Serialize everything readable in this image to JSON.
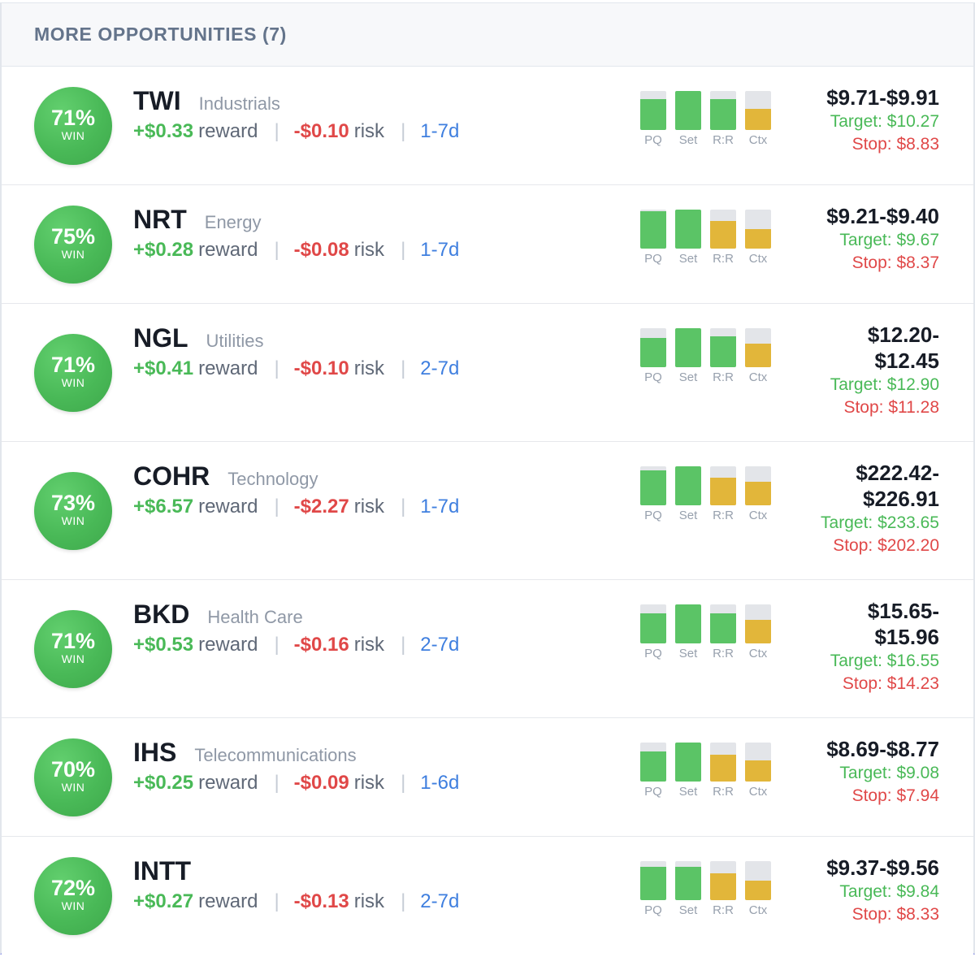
{
  "header": {
    "title": "MORE OPPORTUNITIES (7)"
  },
  "labels": {
    "win": "WIN",
    "reward": "reward",
    "risk": "risk",
    "separator": "|"
  },
  "bar_labels": [
    "PQ",
    "Set",
    "R:R",
    "Ctx"
  ],
  "colors": {
    "green": "#5bc466",
    "amber": "#e2b63a",
    "track": "#e3e5e9"
  },
  "opportunities": [
    {
      "pct": "71%",
      "ticker": "TWI",
      "sector": "Industrials",
      "reward": "+$0.33",
      "risk": "-$0.10",
      "days": "1-7d",
      "range": "$9.71-$9.91",
      "target": "Target: $10.27",
      "stop": "Stop: $8.83",
      "bars": [
        {
          "level": 0.8,
          "color": "green"
        },
        {
          "level": 1.0,
          "color": "green"
        },
        {
          "level": 0.8,
          "color": "green"
        },
        {
          "level": 0.55,
          "color": "amber"
        }
      ]
    },
    {
      "pct": "75%",
      "ticker": "NRT",
      "sector": "Energy",
      "reward": "+$0.28",
      "risk": "-$0.08",
      "days": "1-7d",
      "range": "$9.21-$9.40",
      "target": "Target: $9.67",
      "stop": "Stop: $8.37",
      "bars": [
        {
          "level": 0.95,
          "color": "green"
        },
        {
          "level": 1.0,
          "color": "green"
        },
        {
          "level": 0.7,
          "color": "amber"
        },
        {
          "level": 0.5,
          "color": "amber"
        }
      ]
    },
    {
      "pct": "71%",
      "ticker": "NGL",
      "sector": "Utilities",
      "reward": "+$0.41",
      "risk": "-$0.10",
      "days": "2-7d",
      "range": "$12.20-\n$12.45",
      "target": "Target: $12.90",
      "stop": "Stop: $11.28",
      "bars": [
        {
          "level": 0.75,
          "color": "green"
        },
        {
          "level": 1.0,
          "color": "green"
        },
        {
          "level": 0.8,
          "color": "green"
        },
        {
          "level": 0.6,
          "color": "amber"
        }
      ]
    },
    {
      "pct": "73%",
      "ticker": "COHR",
      "sector": "Technology",
      "reward": "+$6.57",
      "risk": "-$2.27",
      "days": "1-7d",
      "range": "$222.42-\n$226.91",
      "target": "Target: $233.65",
      "stop": "Stop: $202.20",
      "bars": [
        {
          "level": 0.9,
          "color": "green"
        },
        {
          "level": 1.0,
          "color": "green"
        },
        {
          "level": 0.7,
          "color": "amber"
        },
        {
          "level": 0.6,
          "color": "amber"
        }
      ]
    },
    {
      "pct": "71%",
      "ticker": "BKD",
      "sector": "Health Care",
      "reward": "+$0.53",
      "risk": "-$0.16",
      "days": "2-7d",
      "range": "$15.65-\n$15.96",
      "target": "Target: $16.55",
      "stop": "Stop: $14.23",
      "bars": [
        {
          "level": 0.78,
          "color": "green"
        },
        {
          "level": 1.0,
          "color": "green"
        },
        {
          "level": 0.78,
          "color": "green"
        },
        {
          "level": 0.6,
          "color": "amber"
        }
      ]
    },
    {
      "pct": "70%",
      "ticker": "IHS",
      "sector": "Telecommunications",
      "reward": "+$0.25",
      "risk": "-$0.09",
      "days": "1-6d",
      "range": "$8.69-$8.77",
      "target": "Target: $9.08",
      "stop": "Stop: $7.94",
      "bars": [
        {
          "level": 0.78,
          "color": "green"
        },
        {
          "level": 1.0,
          "color": "green"
        },
        {
          "level": 0.68,
          "color": "amber"
        },
        {
          "level": 0.55,
          "color": "amber"
        }
      ]
    },
    {
      "pct": "72%",
      "ticker": "INTT",
      "sector": "",
      "reward": "+$0.27",
      "risk": "-$0.13",
      "days": "2-7d",
      "range": "$9.37-$9.56",
      "target": "Target: $9.84",
      "stop": "Stop: $8.33",
      "bars": [
        {
          "level": 0.85,
          "color": "green"
        },
        {
          "level": 0.85,
          "color": "green"
        },
        {
          "level": 0.68,
          "color": "amber"
        },
        {
          "level": 0.5,
          "color": "amber"
        }
      ]
    }
  ]
}
